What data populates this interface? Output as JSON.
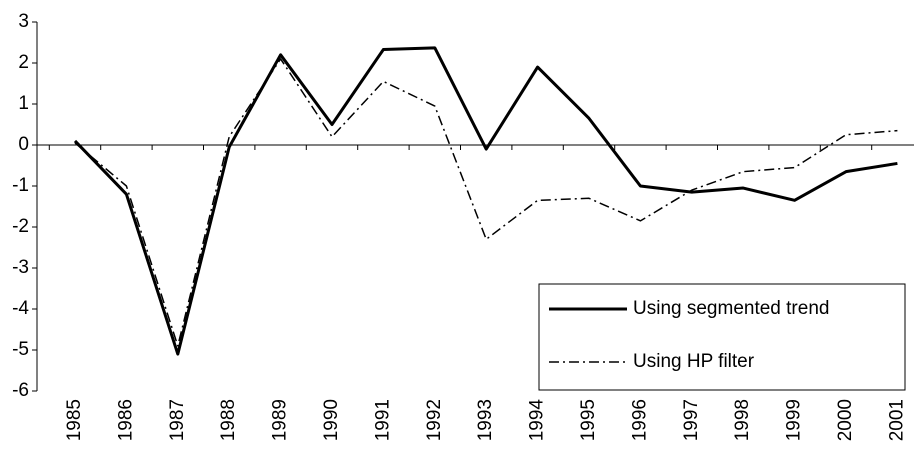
{
  "chart_data": {
    "type": "line",
    "categories": [
      "1985",
      "1986",
      "1987",
      "1988",
      "1989",
      "1990",
      "1991",
      "1992",
      "1993",
      "1994",
      "1995",
      "1996",
      "1997",
      "1998",
      "1999",
      "2000",
      "2001"
    ],
    "series": [
      {
        "name": "Using segmented trend",
        "color": "#000000",
        "style": "solid",
        "values": [
          0.1,
          -1.2,
          -5.1,
          -0.05,
          2.2,
          0.5,
          2.33,
          2.37,
          -0.1,
          1.9,
          0.65,
          -1.0,
          -1.15,
          -1.05,
          -1.35,
          -0.65,
          -0.45
        ]
      },
      {
        "name": "Using HP filter",
        "color": "#000000",
        "style": "dashdot",
        "values": [
          0.05,
          -1.0,
          -4.9,
          0.2,
          2.1,
          0.2,
          1.55,
          0.95,
          -2.3,
          -1.35,
          -1.3,
          -1.85,
          -1.1,
          -0.65,
          -0.55,
          0.25,
          0.35
        ]
      }
    ],
    "ylim": [
      -6,
      3
    ],
    "yticks": [
      -6,
      -5,
      -4,
      -3,
      -2,
      -1,
      0,
      1,
      2,
      3
    ],
    "legend": "lower right"
  }
}
